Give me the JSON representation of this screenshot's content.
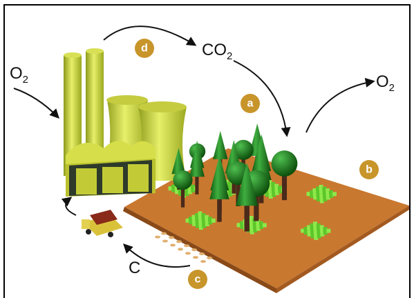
{
  "labels": {
    "o2_left": {
      "symbol": "O",
      "subscript": "2"
    },
    "co2": {
      "symbol": "CO",
      "subscript": "2"
    },
    "o2_right": {
      "symbol": "O",
      "subscript": "2"
    },
    "carbon": "C"
  },
  "steps": {
    "d": "d",
    "a": "a",
    "b": "b",
    "c": "c"
  }
}
